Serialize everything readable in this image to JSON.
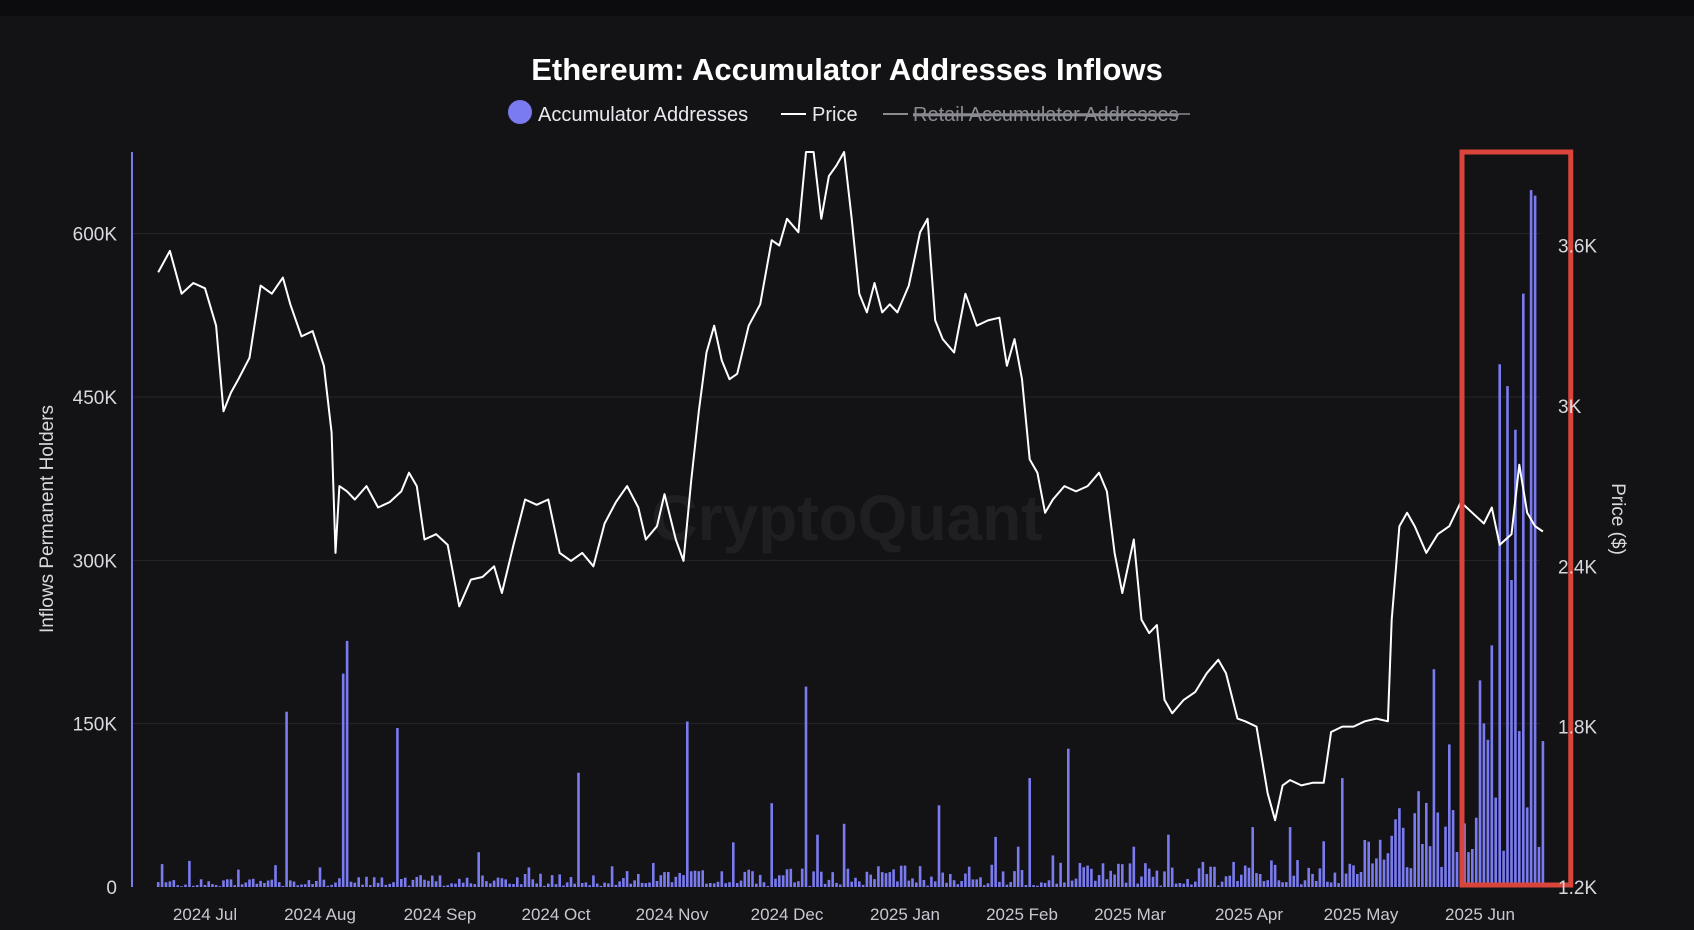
{
  "chart_data": {
    "type": "bar+line",
    "title": "Ethereum: Accumulator Addresses Inflows",
    "watermark": "CryptoQuant",
    "legend": [
      {
        "name": "Accumulator Addresses",
        "marker": "dot",
        "color": "#7b7bf0",
        "active": true
      },
      {
        "name": "Price",
        "marker": "line",
        "color": "#ffffff",
        "active": true
      },
      {
        "name": "Retail Accumulator Addresses",
        "marker": "line",
        "color": "#8a8a92",
        "active": false
      }
    ],
    "y_left": {
      "label": "Inflows Permanent Holders",
      "ticks": [
        "0",
        "150K",
        "300K",
        "450K",
        "600K"
      ],
      "range": [
        0,
        675000
      ]
    },
    "y_right": {
      "label": "Price ($)",
      "ticks": [
        "1.2K",
        "1.8K",
        "2.4K",
        "3K",
        "3.6K"
      ],
      "range": [
        1200,
        3950
      ]
    },
    "x_axis": {
      "ticks": [
        "2024 Jul",
        "2024 Aug",
        "2024 Sep",
        "2024 Oct",
        "2024 Nov",
        "2024 Dec",
        "2025 Jan",
        "2025 Feb",
        "2025 Mar",
        "2025 Apr",
        "2025 May",
        "2025 Jun"
      ]
    },
    "price_series": {
      "name": "Price",
      "color": "#ffffff",
      "points": [
        [
          "2024-06-19",
          3500
        ],
        [
          "2024-06-22",
          3580
        ],
        [
          "2024-06-25",
          3420
        ],
        [
          "2024-06-28",
          3460
        ],
        [
          "2024-07-01",
          3440
        ],
        [
          "2024-07-04",
          3300
        ],
        [
          "2024-07-06",
          2980
        ],
        [
          "2024-07-08",
          3050
        ],
        [
          "2024-07-10",
          3100
        ],
        [
          "2024-07-13",
          3180
        ],
        [
          "2024-07-16",
          3450
        ],
        [
          "2024-07-19",
          3420
        ],
        [
          "2024-07-22",
          3480
        ],
        [
          "2024-07-24",
          3380
        ],
        [
          "2024-07-27",
          3260
        ],
        [
          "2024-07-30",
          3280
        ],
        [
          "2024-08-02",
          3150
        ],
        [
          "2024-08-04",
          2900
        ],
        [
          "2024-08-05",
          2450
        ],
        [
          "2024-08-06",
          2700
        ],
        [
          "2024-08-08",
          2680
        ],
        [
          "2024-08-10",
          2650
        ],
        [
          "2024-08-13",
          2700
        ],
        [
          "2024-08-16",
          2620
        ],
        [
          "2024-08-19",
          2640
        ],
        [
          "2024-08-22",
          2680
        ],
        [
          "2024-08-24",
          2750
        ],
        [
          "2024-08-26",
          2700
        ],
        [
          "2024-08-28",
          2500
        ],
        [
          "2024-08-31",
          2520
        ],
        [
          "2024-09-03",
          2480
        ],
        [
          "2024-09-06",
          2250
        ],
        [
          "2024-09-09",
          2350
        ],
        [
          "2024-09-12",
          2360
        ],
        [
          "2024-09-15",
          2400
        ],
        [
          "2024-09-17",
          2300
        ],
        [
          "2024-09-20",
          2480
        ],
        [
          "2024-09-23",
          2650
        ],
        [
          "2024-09-26",
          2630
        ],
        [
          "2024-09-29",
          2650
        ],
        [
          "2024-10-02",
          2450
        ],
        [
          "2024-10-05",
          2420
        ],
        [
          "2024-10-08",
          2450
        ],
        [
          "2024-10-11",
          2400
        ],
        [
          "2024-10-14",
          2560
        ],
        [
          "2024-10-17",
          2640
        ],
        [
          "2024-10-20",
          2700
        ],
        [
          "2024-10-23",
          2620
        ],
        [
          "2024-10-25",
          2500
        ],
        [
          "2024-10-28",
          2550
        ],
        [
          "2024-10-30",
          2670
        ],
        [
          "2024-11-02",
          2500
        ],
        [
          "2024-11-04",
          2420
        ],
        [
          "2024-11-06",
          2720
        ],
        [
          "2024-11-08",
          2980
        ],
        [
          "2024-11-10",
          3200
        ],
        [
          "2024-11-12",
          3300
        ],
        [
          "2024-11-14",
          3170
        ],
        [
          "2024-11-16",
          3100
        ],
        [
          "2024-11-18",
          3120
        ],
        [
          "2024-11-21",
          3300
        ],
        [
          "2024-11-24",
          3380
        ],
        [
          "2024-11-27",
          3620
        ],
        [
          "2024-11-29",
          3600
        ],
        [
          "2024-12-01",
          3700
        ],
        [
          "2024-12-04",
          3650
        ],
        [
          "2024-12-06",
          3950
        ],
        [
          "2024-12-08",
          3950
        ],
        [
          "2024-12-10",
          3700
        ],
        [
          "2024-12-12",
          3860
        ],
        [
          "2024-12-14",
          3900
        ],
        [
          "2024-12-16",
          3950
        ],
        [
          "2024-12-18",
          3700
        ],
        [
          "2024-12-20",
          3420
        ],
        [
          "2024-12-22",
          3350
        ],
        [
          "2024-12-24",
          3460
        ],
        [
          "2024-12-26",
          3350
        ],
        [
          "2024-12-28",
          3380
        ],
        [
          "2024-12-30",
          3350
        ],
        [
          "2025-01-02",
          3450
        ],
        [
          "2025-01-05",
          3650
        ],
        [
          "2025-01-07",
          3700
        ],
        [
          "2025-01-09",
          3320
        ],
        [
          "2025-01-11",
          3250
        ],
        [
          "2025-01-14",
          3200
        ],
        [
          "2025-01-17",
          3420
        ],
        [
          "2025-01-20",
          3300
        ],
        [
          "2025-01-23",
          3320
        ],
        [
          "2025-01-26",
          3330
        ],
        [
          "2025-01-28",
          3150
        ],
        [
          "2025-01-30",
          3250
        ],
        [
          "2025-02-01",
          3100
        ],
        [
          "2025-02-03",
          2800
        ],
        [
          "2025-02-05",
          2750
        ],
        [
          "2025-02-07",
          2600
        ],
        [
          "2025-02-09",
          2650
        ],
        [
          "2025-02-12",
          2700
        ],
        [
          "2025-02-15",
          2680
        ],
        [
          "2025-02-18",
          2700
        ],
        [
          "2025-02-21",
          2750
        ],
        [
          "2025-02-23",
          2680
        ],
        [
          "2025-02-25",
          2450
        ],
        [
          "2025-02-27",
          2300
        ],
        [
          "2025-03-02",
          2500
        ],
        [
          "2025-03-04",
          2200
        ],
        [
          "2025-03-06",
          2150
        ],
        [
          "2025-03-08",
          2180
        ],
        [
          "2025-03-10",
          1900
        ],
        [
          "2025-03-12",
          1850
        ],
        [
          "2025-03-15",
          1900
        ],
        [
          "2025-03-18",
          1930
        ],
        [
          "2025-03-21",
          2000
        ],
        [
          "2025-03-24",
          2050
        ],
        [
          "2025-03-26",
          2000
        ],
        [
          "2025-03-29",
          1830
        ],
        [
          "2025-03-31",
          1820
        ],
        [
          "2025-04-03",
          1800
        ],
        [
          "2025-04-06",
          1550
        ],
        [
          "2025-04-08",
          1450
        ],
        [
          "2025-04-10",
          1580
        ],
        [
          "2025-04-12",
          1600
        ],
        [
          "2025-04-15",
          1580
        ],
        [
          "2025-04-18",
          1590
        ],
        [
          "2025-04-21",
          1590
        ],
        [
          "2025-04-23",
          1780
        ],
        [
          "2025-04-26",
          1800
        ],
        [
          "2025-04-29",
          1800
        ],
        [
          "2025-05-02",
          1820
        ],
        [
          "2025-05-05",
          1830
        ],
        [
          "2025-05-08",
          1820
        ],
        [
          "2025-05-09",
          2200
        ],
        [
          "2025-05-11",
          2550
        ],
        [
          "2025-05-13",
          2600
        ],
        [
          "2025-05-15",
          2550
        ],
        [
          "2025-05-18",
          2450
        ],
        [
          "2025-05-21",
          2520
        ],
        [
          "2025-05-24",
          2550
        ],
        [
          "2025-05-27",
          2640
        ],
        [
          "2025-05-30",
          2600
        ],
        [
          "2025-06-02",
          2560
        ],
        [
          "2025-06-04",
          2620
        ],
        [
          "2025-06-06",
          2480
        ],
        [
          "2025-06-09",
          2520
        ],
        [
          "2025-06-11",
          2780
        ],
        [
          "2025-06-13",
          2600
        ],
        [
          "2025-06-15",
          2550
        ],
        [
          "2025-06-17",
          2530
        ]
      ]
    },
    "bar_series": {
      "name": "Accumulator Addresses",
      "color": "#7b7bf0",
      "spikes": [
        [
          "2024-06-20",
          21000
        ],
        [
          "2024-06-27",
          24000
        ],
        [
          "2024-07-10",
          16000
        ],
        [
          "2024-07-20",
          20000
        ],
        [
          "2024-07-23",
          161000
        ],
        [
          "2024-08-01",
          18000
        ],
        [
          "2024-08-07",
          196000
        ],
        [
          "2024-08-08",
          226000
        ],
        [
          "2024-08-21",
          146000
        ],
        [
          "2024-09-11",
          32000
        ],
        [
          "2024-09-24",
          18000
        ],
        [
          "2024-10-07",
          105000
        ],
        [
          "2024-10-16",
          19000
        ],
        [
          "2024-10-27",
          22000
        ],
        [
          "2024-11-05",
          152000
        ],
        [
          "2024-11-17",
          41000
        ],
        [
          "2024-11-27",
          77000
        ],
        [
          "2024-12-06",
          184000
        ],
        [
          "2024-12-09",
          48000
        ],
        [
          "2024-12-16",
          58000
        ],
        [
          "2025-01-10",
          75000
        ],
        [
          "2025-01-25",
          46000
        ],
        [
          "2025-01-31",
          37000
        ],
        [
          "2025-02-03",
          100000
        ],
        [
          "2025-02-09",
          29000
        ],
        [
          "2025-02-13",
          127000
        ],
        [
          "2025-03-02",
          37000
        ],
        [
          "2025-03-11",
          48000
        ],
        [
          "2025-04-02",
          55000
        ],
        [
          "2025-04-12",
          55000
        ],
        [
          "2025-04-21",
          42000
        ],
        [
          "2025-04-26",
          100000
        ],
        [
          "2025-05-09",
          47000
        ],
        [
          "2025-05-16",
          88000
        ],
        [
          "2025-05-20",
          200000
        ],
        [
          "2025-05-24",
          131000
        ],
        [
          "2025-06-06",
          480000
        ],
        [
          "2025-06-08",
          460000
        ],
        [
          "2025-06-10",
          420000
        ],
        [
          "2025-06-12",
          545000
        ],
        [
          "2025-06-14",
          640000
        ],
        [
          "2025-06-15",
          635000
        ],
        [
          "2025-06-17",
          134000
        ]
      ]
    },
    "highlight": {
      "x_start": "2025-06-01",
      "x_end": "2025-06-20",
      "color": "#d9443b"
    }
  }
}
